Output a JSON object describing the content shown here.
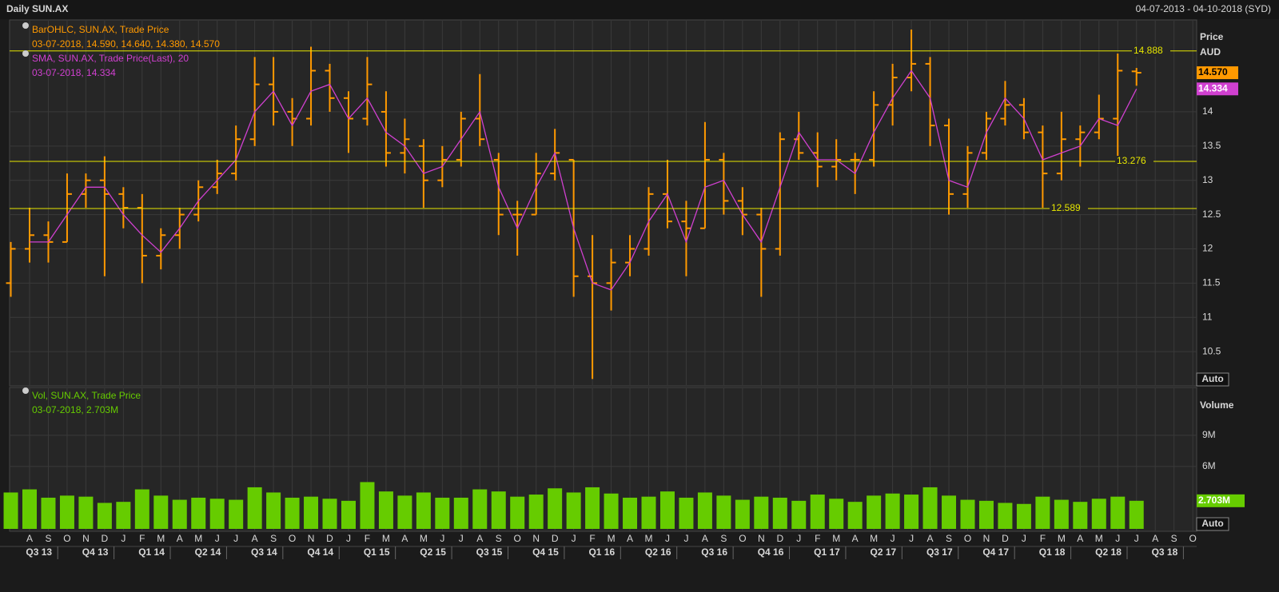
{
  "header": {
    "title": "Daily SUN.AX",
    "date_range": "04-07-2013 - 04-10-2018 (SYD)"
  },
  "time_axis": {
    "month_labels": [
      "A",
      "S",
      "O",
      "N",
      "D",
      "J",
      "F",
      "M",
      "A",
      "M",
      "J",
      "J",
      "A",
      "S",
      "O",
      "N",
      "D",
      "J",
      "F",
      "M",
      "A",
      "M",
      "J",
      "J",
      "A",
      "S",
      "O",
      "N",
      "D",
      "J",
      "F",
      "M",
      "A",
      "M",
      "J",
      "J",
      "A",
      "S",
      "O",
      "N",
      "D",
      "J",
      "F",
      "M",
      "A",
      "M",
      "J",
      "J",
      "A",
      "S",
      "O",
      "N",
      "D",
      "J",
      "F",
      "M",
      "A",
      "M",
      "J",
      "J",
      "A",
      "S",
      "O"
    ],
    "quarter_labels": [
      "Q3 13",
      "Q4 13",
      "Q1 14",
      "Q2 14",
      "Q3 14",
      "Q4 14",
      "Q1 15",
      "Q2 15",
      "Q3 15",
      "Q4 15",
      "Q1 16",
      "Q2 16",
      "Q3 16",
      "Q4 16",
      "Q1 17",
      "Q2 17",
      "Q3 17",
      "Q4 17",
      "Q1 18",
      "Q2 18",
      "Q3 18"
    ]
  },
  "chart_data": [
    {
      "type": "ohlc",
      "ylabel": "Price",
      "yunit": "AUD",
      "scale_mode": "Auto",
      "ylim": [
        10.0,
        15.34
      ],
      "yticks": [
        10.5,
        11,
        11.5,
        12,
        12.5,
        13,
        13.5,
        14
      ],
      "grid": true,
      "x": [
        "2013-07",
        "2013-08",
        "2013-09",
        "2013-10",
        "2013-11",
        "2013-12",
        "2014-01",
        "2014-02",
        "2014-03",
        "2014-04",
        "2014-05",
        "2014-06",
        "2014-07",
        "2014-08",
        "2014-09",
        "2014-10",
        "2014-11",
        "2014-12",
        "2015-01",
        "2015-02",
        "2015-03",
        "2015-04",
        "2015-05",
        "2015-06",
        "2015-07",
        "2015-08",
        "2015-09",
        "2015-10",
        "2015-11",
        "2015-12",
        "2016-01",
        "2016-02",
        "2016-03",
        "2016-04",
        "2016-05",
        "2016-06",
        "2016-07",
        "2016-08",
        "2016-09",
        "2016-10",
        "2016-11",
        "2016-12",
        "2017-01",
        "2017-02",
        "2017-03",
        "2017-04",
        "2017-05",
        "2017-06",
        "2017-07",
        "2017-08",
        "2017-09",
        "2017-10",
        "2017-11",
        "2017-12",
        "2018-01",
        "2018-02",
        "2018-03",
        "2018-04",
        "2018-05",
        "2018-06",
        "2018-07"
      ],
      "hlines": [
        14.888,
        13.276,
        12.589
      ],
      "hline_color": "#e6e600",
      "series": [
        {
          "name": "BarOHLC, SUN.AX, Trade Price",
          "status": "03-07-2018, 14.590, 14.640, 14.380, 14.570",
          "color": "#ff9900",
          "last_label": "14.570",
          "open": [
            11.5,
            12.0,
            12.2,
            12.1,
            12.8,
            13.0,
            12.8,
            12.6,
            11.9,
            12.2,
            12.5,
            12.9,
            13.1,
            13.6,
            14.4,
            14.0,
            13.9,
            14.6,
            14.2,
            13.9,
            14.0,
            13.4,
            13.5,
            13.0,
            13.3,
            13.9,
            13.3,
            12.5,
            12.5,
            13.1,
            13.3,
            11.6,
            11.5,
            11.8,
            12.0,
            12.8,
            12.4,
            12.3,
            13.3,
            12.7,
            12.5,
            12.0,
            13.6,
            13.4,
            13.2,
            13.3,
            13.3,
            14.1,
            14.5,
            14.7,
            13.8,
            12.8,
            13.4,
            13.9,
            14.1,
            13.7,
            13.1,
            13.6,
            13.7,
            13.9,
            14.59
          ],
          "high": [
            12.1,
            12.6,
            12.4,
            13.1,
            13.1,
            13.35,
            12.9,
            12.8,
            12.3,
            12.6,
            13.0,
            13.3,
            13.8,
            14.8,
            14.8,
            14.2,
            14.95,
            14.7,
            14.3,
            14.8,
            14.3,
            13.9,
            13.6,
            13.5,
            14.0,
            14.55,
            13.4,
            12.7,
            13.4,
            13.75,
            13.3,
            12.2,
            12.0,
            12.2,
            12.9,
            13.3,
            12.7,
            13.85,
            13.4,
            12.9,
            12.6,
            13.7,
            14.0,
            13.7,
            13.6,
            13.4,
            14.3,
            14.7,
            15.2,
            14.8,
            13.9,
            13.5,
            14.0,
            14.45,
            14.2,
            13.8,
            14.0,
            13.8,
            14.25,
            14.85,
            14.64
          ],
          "low": [
            11.3,
            11.8,
            11.8,
            12.1,
            12.6,
            11.6,
            12.3,
            11.5,
            11.7,
            12.0,
            12.4,
            12.8,
            13.0,
            13.5,
            13.8,
            13.5,
            13.8,
            14.0,
            13.4,
            13.8,
            13.2,
            13.1,
            12.6,
            12.9,
            13.2,
            13.5,
            12.2,
            11.9,
            12.5,
            13.0,
            11.3,
            10.1,
            11.1,
            11.6,
            11.9,
            12.3,
            11.6,
            12.3,
            12.5,
            12.2,
            11.3,
            11.9,
            13.3,
            12.9,
            13.0,
            12.8,
            13.2,
            13.8,
            14.3,
            13.5,
            12.5,
            12.6,
            13.3,
            13.8,
            13.6,
            12.6,
            13.0,
            13.2,
            13.6,
            13.3,
            14.38
          ],
          "close": [
            12.0,
            12.2,
            12.1,
            12.8,
            13.0,
            12.8,
            12.6,
            11.9,
            12.2,
            12.5,
            12.9,
            13.1,
            13.6,
            14.4,
            14.0,
            13.9,
            14.6,
            14.2,
            13.9,
            14.4,
            13.4,
            13.6,
            13.0,
            13.3,
            13.9,
            13.6,
            12.5,
            12.5,
            13.1,
            13.4,
            11.6,
            11.5,
            11.8,
            12.0,
            12.8,
            12.4,
            12.3,
            13.3,
            12.7,
            12.5,
            12.0,
            13.6,
            13.4,
            13.2,
            13.3,
            13.3,
            14.1,
            14.5,
            14.7,
            13.8,
            12.8,
            13.4,
            13.9,
            14.1,
            13.7,
            13.1,
            13.6,
            13.7,
            13.9,
            14.6,
            14.57
          ]
        },
        {
          "name": "SMA, SUN.AX, Trade Price(Last),  20",
          "status": "03-07-2018, 14.334",
          "color": "#d040d0",
          "last_label": "14.334",
          "values": [
            null,
            12.1,
            12.1,
            12.5,
            12.9,
            12.9,
            12.5,
            12.2,
            11.95,
            12.3,
            12.7,
            13.0,
            13.3,
            14.0,
            14.3,
            13.8,
            14.3,
            14.4,
            13.9,
            14.2,
            13.7,
            13.5,
            13.1,
            13.2,
            13.6,
            14.0,
            12.9,
            12.3,
            12.9,
            13.4,
            12.3,
            11.5,
            11.4,
            11.8,
            12.4,
            12.8,
            12.1,
            12.9,
            13.0,
            12.5,
            12.1,
            12.9,
            13.7,
            13.3,
            13.3,
            13.1,
            13.7,
            14.2,
            14.6,
            14.2,
            13.0,
            12.9,
            13.7,
            14.2,
            13.9,
            13.3,
            13.4,
            13.5,
            13.9,
            13.8,
            14.334
          ]
        }
      ]
    },
    {
      "type": "bar",
      "ylabel": "Volume",
      "scale_mode": "Auto",
      "ylim": [
        0,
        13.6
      ],
      "yticks": [
        {
          "value": 9,
          "label": "9M"
        },
        {
          "value": 6,
          "label": "6M"
        }
      ],
      "grid": true,
      "x": [
        "2013-07",
        "2013-08",
        "2013-09",
        "2013-10",
        "2013-11",
        "2013-12",
        "2014-01",
        "2014-02",
        "2014-03",
        "2014-04",
        "2014-05",
        "2014-06",
        "2014-07",
        "2014-08",
        "2014-09",
        "2014-10",
        "2014-11",
        "2014-12",
        "2015-01",
        "2015-02",
        "2015-03",
        "2015-04",
        "2015-05",
        "2015-06",
        "2015-07",
        "2015-08",
        "2015-09",
        "2015-10",
        "2015-11",
        "2015-12",
        "2016-01",
        "2016-02",
        "2016-03",
        "2016-04",
        "2016-05",
        "2016-06",
        "2016-07",
        "2016-08",
        "2016-09",
        "2016-10",
        "2016-11",
        "2016-12",
        "2017-01",
        "2017-02",
        "2017-03",
        "2017-04",
        "2017-05",
        "2017-06",
        "2017-07",
        "2017-08",
        "2017-09",
        "2017-10",
        "2017-11",
        "2017-12",
        "2018-01",
        "2018-02",
        "2018-03",
        "2018-04",
        "2018-05",
        "2018-06",
        "2018-07"
      ],
      "series": [
        {
          "name": "Vol, SUN.AX, Trade Price",
          "status": "03-07-2018, 2.703M",
          "color": "#66cc00",
          "last_label": "2.703M",
          "values": [
            3.5,
            3.8,
            3.0,
            3.2,
            3.1,
            2.5,
            2.6,
            3.8,
            3.2,
            2.8,
            3.0,
            2.9,
            2.8,
            4.0,
            3.5,
            3.0,
            3.1,
            2.9,
            2.7,
            4.5,
            3.6,
            3.2,
            3.5,
            3.0,
            3.0,
            3.8,
            3.6,
            3.1,
            3.3,
            3.9,
            3.5,
            4.0,
            3.4,
            3.0,
            3.1,
            3.6,
            3.0,
            3.5,
            3.2,
            2.8,
            3.1,
            3.0,
            2.7,
            3.3,
            2.9,
            2.6,
            3.2,
            3.4,
            3.3,
            4.0,
            3.2,
            2.8,
            2.7,
            2.5,
            2.4,
            3.1,
            2.8,
            2.6,
            2.9,
            3.1,
            2.703
          ]
        }
      ]
    }
  ]
}
